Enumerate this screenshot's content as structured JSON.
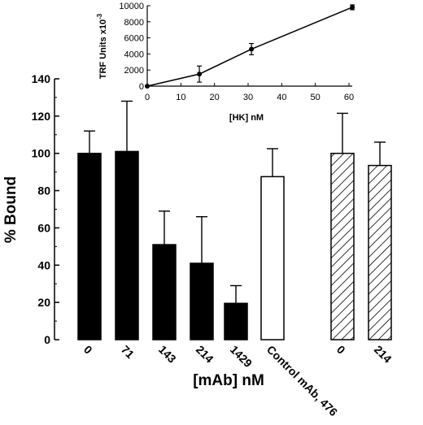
{
  "chart_data": [
    {
      "type": "bar",
      "ylabel": "% Bound",
      "xlabel": "[mAb] nM",
      "ylim": [
        0,
        140
      ],
      "yticks": [
        0,
        20,
        40,
        60,
        80,
        100,
        120,
        140
      ],
      "categories": [
        "0",
        "71",
        "143",
        "214",
        "1429",
        "Control mAb, 476",
        "0",
        "214"
      ],
      "values": [
        100,
        101,
        51,
        41,
        19.5,
        87.5,
        100,
        93.5
      ],
      "errors": [
        12,
        27,
        18,
        25,
        9.5,
        15,
        21.5,
        12.5
      ],
      "fills": [
        "solid",
        "solid",
        "solid",
        "solid",
        "solid",
        "open",
        "hatched",
        "hatched"
      ],
      "colors": {
        "solid": "#000000",
        "open": "#ffffff",
        "outline": "#000000"
      }
    },
    {
      "type": "line",
      "ylabel": "TRF Units x10",
      "ylabel_superscript": "-3",
      "xlabel": "[HK] nM",
      "xlim": [
        0,
        60
      ],
      "ylim": [
        0,
        10000
      ],
      "xticks": [
        0,
        10,
        20,
        30,
        40,
        50,
        60
      ],
      "yticks": [
        0,
        2000,
        4000,
        6000,
        8000,
        10000
      ],
      "x": [
        0,
        15.5,
        31,
        61
      ],
      "y": [
        0,
        1500,
        4600,
        9800
      ],
      "errors": [
        0,
        1000,
        700,
        300
      ]
    }
  ]
}
